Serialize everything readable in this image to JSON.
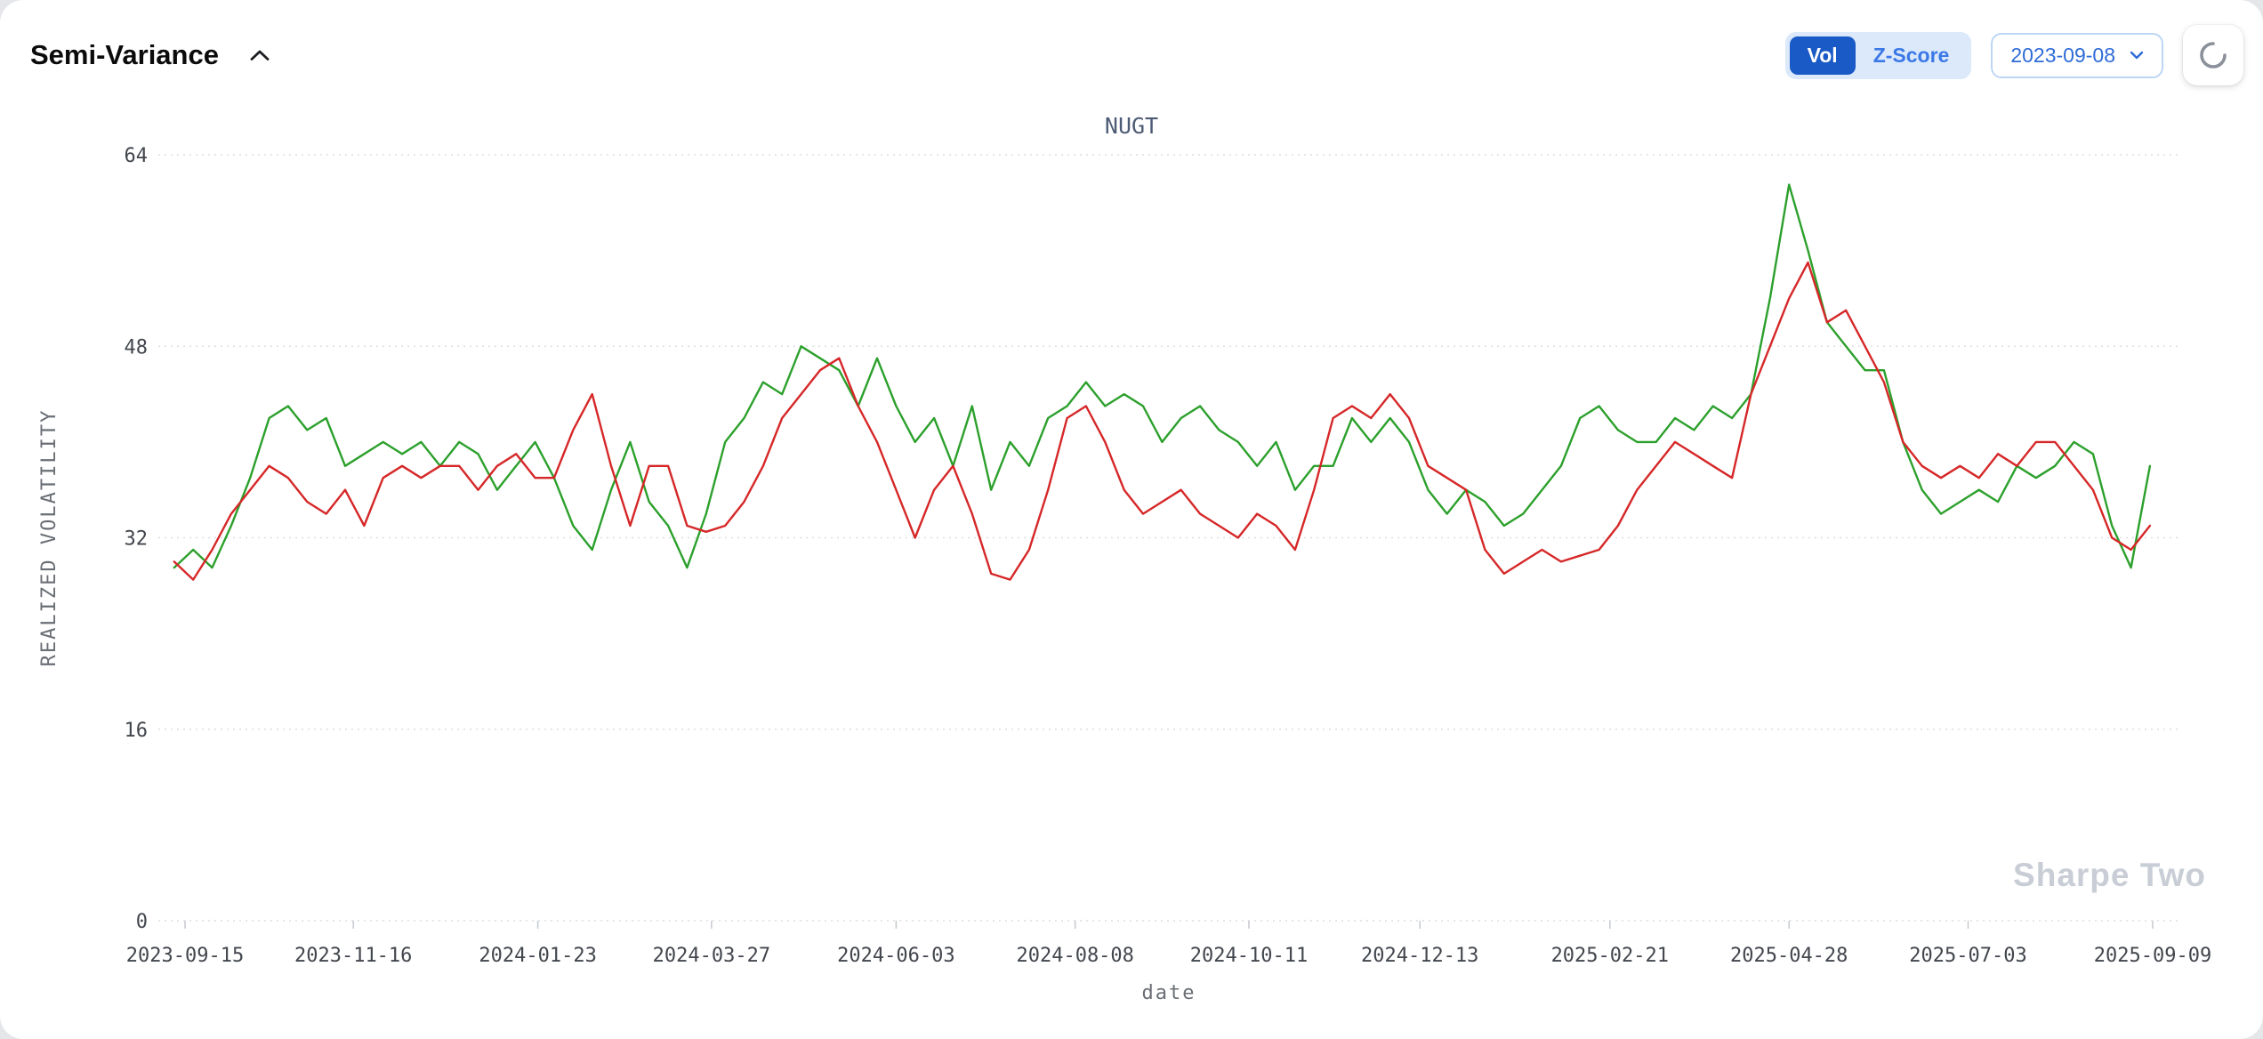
{
  "header": {
    "title": "Semi-Variance",
    "toggle": {
      "options": [
        "Vol",
        "Z-Score"
      ],
      "selected": "Vol"
    },
    "date_select": {
      "value": "2023-09-08"
    }
  },
  "colors": {
    "accent_blue": "#1a5ac6",
    "toggle_bg": "#dbe9fb",
    "link_blue": "#2f6bd8",
    "grid": "#dcdee2",
    "watermark": "#c9cdd6"
  },
  "chart_data": {
    "type": "line",
    "title": "NUGT",
    "xlabel": "date",
    "ylabel": "REALIZED VOLATILITY",
    "ylim": [
      0,
      64
    ],
    "yticks": [
      0,
      16,
      32,
      48,
      64
    ],
    "xticks": [
      "2023-09-15",
      "2023-11-16",
      "2024-01-23",
      "2024-03-27",
      "2024-06-03",
      "2024-08-08",
      "2024-10-11",
      "2024-12-13",
      "2025-02-21",
      "2025-04-28",
      "2025-07-03",
      "2025-09-09"
    ],
    "grid": "horizontal-dotted",
    "legend": "none",
    "watermark": "Sharpe Two",
    "x": [
      "2023-09-11",
      "2023-09-18",
      "2023-09-25",
      "2023-10-02",
      "2023-10-09",
      "2023-10-16",
      "2023-10-23",
      "2023-10-30",
      "2023-11-06",
      "2023-11-13",
      "2023-11-20",
      "2023-11-27",
      "2023-12-04",
      "2023-12-11",
      "2023-12-18",
      "2023-12-25",
      "2024-01-01",
      "2024-01-08",
      "2024-01-15",
      "2024-01-22",
      "2024-01-29",
      "2024-02-05",
      "2024-02-12",
      "2024-02-19",
      "2024-02-26",
      "2024-03-04",
      "2024-03-11",
      "2024-03-18",
      "2024-03-25",
      "2024-04-01",
      "2024-04-08",
      "2024-04-15",
      "2024-04-22",
      "2024-04-29",
      "2024-05-06",
      "2024-05-13",
      "2024-05-20",
      "2024-05-27",
      "2024-06-03",
      "2024-06-10",
      "2024-06-17",
      "2024-06-24",
      "2024-07-01",
      "2024-07-08",
      "2024-07-15",
      "2024-07-22",
      "2024-07-29",
      "2024-08-05",
      "2024-08-12",
      "2024-08-19",
      "2024-08-26",
      "2024-09-02",
      "2024-09-09",
      "2024-09-16",
      "2024-09-23",
      "2024-09-30",
      "2024-10-07",
      "2024-10-14",
      "2024-10-21",
      "2024-10-28",
      "2024-11-04",
      "2024-11-11",
      "2024-11-18",
      "2024-11-25",
      "2024-12-02",
      "2024-12-09",
      "2024-12-16",
      "2024-12-23",
      "2024-12-30",
      "2025-01-06",
      "2025-01-13",
      "2025-01-20",
      "2025-01-27",
      "2025-02-03",
      "2025-02-10",
      "2025-02-17",
      "2025-02-24",
      "2025-03-03",
      "2025-03-10",
      "2025-03-17",
      "2025-03-24",
      "2025-03-31",
      "2025-04-07",
      "2025-04-14",
      "2025-04-21",
      "2025-04-28",
      "2025-05-05",
      "2025-05-12",
      "2025-05-19",
      "2025-05-26",
      "2025-06-02",
      "2025-06-09",
      "2025-06-16",
      "2025-06-23",
      "2025-06-30",
      "2025-07-07",
      "2025-07-14",
      "2025-07-21",
      "2025-07-28",
      "2025-08-04",
      "2025-08-11",
      "2025-08-18",
      "2025-08-25",
      "2025-09-01",
      "2025-09-08"
    ],
    "series": [
      {
        "name": "green",
        "color": "#2ca02c",
        "values": [
          29.5,
          31,
          29.5,
          33,
          37,
          42,
          43,
          41,
          42,
          38,
          39,
          40,
          39,
          40,
          38,
          40,
          39,
          36,
          38,
          40,
          37,
          33,
          31,
          36,
          40,
          35,
          33,
          29.5,
          34,
          40,
          42,
          45,
          44,
          48,
          47,
          46,
          43,
          47,
          43,
          40,
          42,
          38,
          43,
          36,
          40,
          38,
          42,
          43,
          45,
          43,
          44,
          43,
          40,
          42,
          43,
          41,
          40,
          38,
          40,
          36,
          38,
          38,
          42,
          40,
          42,
          40,
          36,
          34,
          36,
          35,
          33,
          34,
          36,
          38,
          42,
          43,
          41,
          40,
          40,
          42,
          41,
          43,
          42,
          44,
          52,
          61.5,
          56,
          50,
          48,
          46,
          46,
          40,
          36,
          34,
          35,
          36,
          35,
          38,
          37,
          38,
          40,
          39,
          33,
          29.5,
          38
        ]
      },
      {
        "name": "red",
        "color": "#d62728",
        "values": [
          30,
          28.5,
          31,
          34,
          36,
          38,
          37,
          35,
          34,
          36,
          33,
          37,
          38,
          37,
          38,
          38,
          36,
          38,
          39,
          37,
          37,
          41,
          44,
          38,
          33,
          38,
          38,
          33,
          32.5,
          33,
          35,
          38,
          42,
          44,
          46,
          47,
          43,
          40,
          36,
          32,
          36,
          38,
          34,
          29,
          28.5,
          31,
          36,
          42,
          43,
          40,
          36,
          34,
          35,
          36,
          34,
          33,
          32,
          34,
          33,
          31,
          36,
          42,
          43,
          42,
          44,
          42,
          38,
          37,
          36,
          31,
          29,
          30,
          31,
          30,
          30.5,
          31,
          33,
          36,
          38,
          40,
          39,
          38,
          37,
          44,
          48,
          52,
          55,
          50,
          51,
          48,
          45,
          40,
          38,
          37,
          38,
          37,
          39,
          38,
          40,
          40,
          38,
          36,
          32,
          31,
          33
        ]
      }
    ]
  }
}
